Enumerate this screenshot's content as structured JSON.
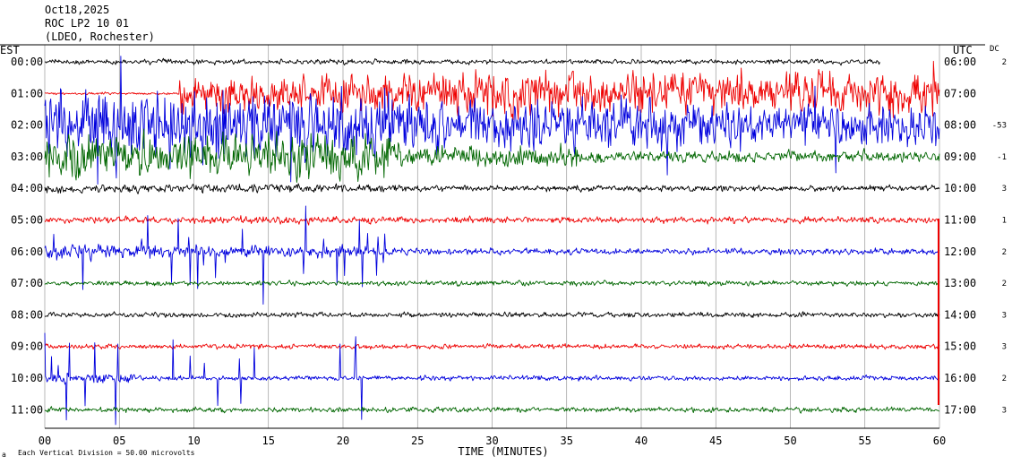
{
  "header": {
    "date": "Oct18,2025",
    "station": "ROC LP2 10 01",
    "location": "(LDEO, Rochester)"
  },
  "labels": {
    "left_tz": "EST",
    "right_tz": "UTC",
    "dc_header": "DC",
    "xlabel": "TIME (MINUTES)",
    "footer_mark": "a",
    "footer": "Each Vertical Division =   50.00 microvolts"
  },
  "colors": {
    "cycle": [
      "#000000",
      "#ee0000",
      "#0000dd",
      "#006600"
    ],
    "grid": "#888888"
  },
  "chart_data": {
    "type": "line",
    "title": "",
    "x_ticks": [
      "00",
      "05",
      "10",
      "15",
      "20",
      "25",
      "30",
      "35",
      "40",
      "45",
      "50",
      "55",
      "60"
    ],
    "xlim": [
      0,
      60
    ],
    "rows": [
      {
        "est": "00:00",
        "utc": "06:00",
        "dc": "2",
        "color": "#000000",
        "end_min": 56
      },
      {
        "est": "01:00",
        "utc": "07:00",
        "dc": "",
        "color": "#ee0000",
        "end_min": 60
      },
      {
        "est": "02:00",
        "utc": "08:00",
        "dc": "-53",
        "color": "#0000dd",
        "end_min": 60
      },
      {
        "est": "03:00",
        "utc": "09:00",
        "dc": "-1",
        "color": "#006600",
        "end_min": 60
      },
      {
        "est": "04:00",
        "utc": "10:00",
        "dc": "3",
        "color": "#000000",
        "end_min": 60
      },
      {
        "est": "05:00",
        "utc": "11:00",
        "dc": "1",
        "color": "#ee0000",
        "end_min": 60
      },
      {
        "est": "06:00",
        "utc": "12:00",
        "dc": "2",
        "color": "#0000dd",
        "end_min": 60
      },
      {
        "est": "07:00",
        "utc": "13:00",
        "dc": "2",
        "color": "#006600",
        "end_min": 60
      },
      {
        "est": "08:00",
        "utc": "14:00",
        "dc": "3",
        "color": "#000000",
        "end_min": 60
      },
      {
        "est": "09:00",
        "utc": "15:00",
        "dc": "3",
        "color": "#ee0000",
        "end_min": 60
      },
      {
        "est": "10:00",
        "utc": "16:00",
        "dc": "2",
        "color": "#0000dd",
        "end_min": 60
      },
      {
        "est": "11:00",
        "utc": "17:00",
        "dc": "3",
        "color": "#006600",
        "end_min": 60
      }
    ]
  }
}
